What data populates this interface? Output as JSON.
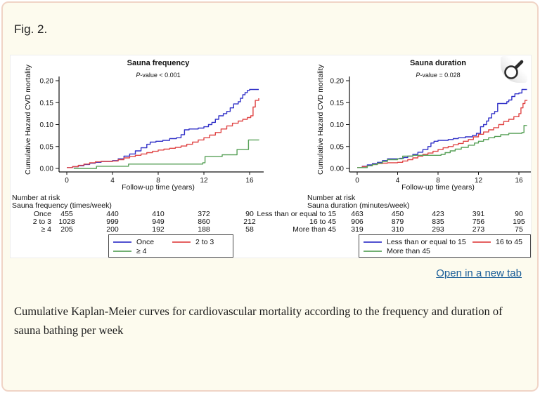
{
  "page": {
    "figure_label": "Fig. 2.",
    "open_link": "Open in a new tab",
    "caption": "Cumulative Kaplan-Meier curves for cardiovascular mortality according to the frequency and duration of sauna bathing per week"
  },
  "colors": {
    "blue": "#3232c8",
    "red": "#e04646",
    "green": "#58a158",
    "page_bg": "#fdfbee",
    "page_border": "#f0d4c6",
    "link": "#1a5d97",
    "axis": "#111111"
  },
  "icons": {
    "magnifier": "magnifying-glass"
  },
  "chart_data": [
    {
      "type": "line",
      "title": "Sauna frequency",
      "subtitle": "P-value < 0.001",
      "xlabel": "Follow-up time (years)",
      "ylabel": "Cumulative Hazard CVD mortality",
      "xlim": [
        0,
        17.2
      ],
      "ylim": [
        0,
        0.2
      ],
      "xticks": [
        0,
        4,
        8,
        12,
        16
      ],
      "yticks": [
        "0.00",
        "0.05",
        "0.10",
        "0.15",
        "0.20"
      ],
      "grid": false,
      "legend_position": "bottom",
      "series": [
        {
          "name": "Once",
          "color_key": "blue",
          "points": [
            [
              0,
              0.002
            ],
            [
              0.5,
              0.004
            ],
            [
              1,
              0.006
            ],
            [
              1.5,
              0.009
            ],
            [
              2,
              0.012
            ],
            [
              2.5,
              0.014
            ],
            [
              3,
              0.016
            ],
            [
              4,
              0.018
            ],
            [
              4.5,
              0.022
            ],
            [
              5,
              0.028
            ],
            [
              5.5,
              0.033
            ],
            [
              6,
              0.04
            ],
            [
              6.5,
              0.047
            ],
            [
              7,
              0.055
            ],
            [
              7.3,
              0.06
            ],
            [
              7.8,
              0.062
            ],
            [
              8.4,
              0.064
            ],
            [
              9,
              0.068
            ],
            [
              9.6,
              0.07
            ],
            [
              10,
              0.077
            ],
            [
              10.3,
              0.088
            ],
            [
              10.7,
              0.09
            ],
            [
              11.5,
              0.092
            ],
            [
              12,
              0.095
            ],
            [
              12.4,
              0.1
            ],
            [
              12.7,
              0.105
            ],
            [
              13,
              0.112
            ],
            [
              13.3,
              0.12
            ],
            [
              13.7,
              0.125
            ],
            [
              14,
              0.13
            ],
            [
              14.3,
              0.138
            ],
            [
              14.6,
              0.147
            ],
            [
              15,
              0.152
            ],
            [
              15.2,
              0.16
            ],
            [
              15.4,
              0.168
            ],
            [
              15.6,
              0.173
            ],
            [
              15.8,
              0.178
            ],
            [
              16,
              0.18
            ],
            [
              16.8,
              0.18
            ]
          ]
        },
        {
          "name": "2 to 3",
          "color_key": "red",
          "points": [
            [
              0,
              0.002
            ],
            [
              0.5,
              0.004
            ],
            [
              1,
              0.007
            ],
            [
              1.5,
              0.01
            ],
            [
              2,
              0.013
            ],
            [
              2.5,
              0.015
            ],
            [
              3,
              0.016
            ],
            [
              4,
              0.017
            ],
            [
              4.5,
              0.02
            ],
            [
              5,
              0.024
            ],
            [
              5.5,
              0.027
            ],
            [
              6,
              0.03
            ],
            [
              6.5,
              0.033
            ],
            [
              7,
              0.036
            ],
            [
              7.5,
              0.039
            ],
            [
              8,
              0.042
            ],
            [
              8.5,
              0.044
            ],
            [
              9,
              0.046
            ],
            [
              9.5,
              0.048
            ],
            [
              10,
              0.051
            ],
            [
              10.5,
              0.055
            ],
            [
              11,
              0.06
            ],
            [
              11.5,
              0.065
            ],
            [
              12,
              0.07
            ],
            [
              12.5,
              0.076
            ],
            [
              13,
              0.082
            ],
            [
              13.5,
              0.09
            ],
            [
              14,
              0.097
            ],
            [
              14.5,
              0.103
            ],
            [
              15,
              0.108
            ],
            [
              15.4,
              0.112
            ],
            [
              15.8,
              0.116
            ],
            [
              16.1,
              0.12
            ],
            [
              16.3,
              0.14
            ],
            [
              16.5,
              0.155
            ],
            [
              16.8,
              0.16
            ]
          ]
        },
        {
          "name": "≥ 4",
          "color_key": "green",
          "points": [
            [
              0.6,
              0
            ],
            [
              2.6,
              0.005
            ],
            [
              5.4,
              0.01
            ],
            [
              11.9,
              0.013
            ],
            [
              12.1,
              0.027
            ],
            [
              13.6,
              0.031
            ],
            [
              14.9,
              0.043
            ],
            [
              15.9,
              0.065
            ],
            [
              16.8,
              0.066
            ]
          ]
        }
      ],
      "risk_table": {
        "header": "Number at risk",
        "subheader": "Sauna frequency (times/week)",
        "rows": [
          {
            "label": "Once",
            "values": [
              455,
              440,
              410,
              372,
              90
            ]
          },
          {
            "label": "2 to 3",
            "values": [
              1028,
              999,
              949,
              860,
              212
            ]
          },
          {
            "label": "≥ 4",
            "values": [
              205,
              200,
              192,
              188,
              58
            ]
          }
        ]
      },
      "legend": [
        {
          "label": "Once",
          "color_key": "blue"
        },
        {
          "label": "2 to 3",
          "color_key": "red"
        },
        {
          "label": "≥ 4",
          "color_key": "green"
        }
      ]
    },
    {
      "type": "line",
      "title": "Sauna duration",
      "subtitle": "P-value = 0.028",
      "xlabel": "Follow-up time (years)",
      "ylabel": "Cumulative Hazard CVD mortality",
      "xlim": [
        0,
        17.2
      ],
      "ylim": [
        0,
        0.2
      ],
      "xticks": [
        0,
        4,
        8,
        12,
        16
      ],
      "yticks": [
        "0.00",
        "0.05",
        "0.10",
        "0.15",
        "0.20"
      ],
      "grid": false,
      "legend_position": "bottom",
      "series": [
        {
          "name": "Less than or equal to 15",
          "color_key": "blue",
          "points": [
            [
              0,
              0.002
            ],
            [
              0.5,
              0.005
            ],
            [
              1,
              0.008
            ],
            [
              1.5,
              0.011
            ],
            [
              2,
              0.014
            ],
            [
              2.5,
              0.018
            ],
            [
              3,
              0.022
            ],
            [
              4.2,
              0.023
            ],
            [
              4.6,
              0.025
            ],
            [
              5,
              0.028
            ],
            [
              5.5,
              0.032
            ],
            [
              6,
              0.037
            ],
            [
              6.5,
              0.043
            ],
            [
              7,
              0.05
            ],
            [
              7.3,
              0.058
            ],
            [
              7.6,
              0.062
            ],
            [
              8,
              0.064
            ],
            [
              9,
              0.066
            ],
            [
              9.5,
              0.068
            ],
            [
              10,
              0.07
            ],
            [
              10.7,
              0.072
            ],
            [
              11.4,
              0.075
            ],
            [
              11.8,
              0.08
            ],
            [
              12.2,
              0.095
            ],
            [
              12.5,
              0.1
            ],
            [
              12.8,
              0.108
            ],
            [
              13,
              0.115
            ],
            [
              13.3,
              0.125
            ],
            [
              13.6,
              0.13
            ],
            [
              13.9,
              0.148
            ],
            [
              14.8,
              0.152
            ],
            [
              15,
              0.156
            ],
            [
              15.3,
              0.164
            ],
            [
              15.6,
              0.17
            ],
            [
              16,
              0.172
            ],
            [
              16.3,
              0.18
            ],
            [
              16.8,
              0.18
            ]
          ]
        },
        {
          "name": "16 to 45",
          "color_key": "red",
          "points": [
            [
              0,
              0.002
            ],
            [
              0.5,
              0.004
            ],
            [
              1,
              0.006
            ],
            [
              1.5,
              0.009
            ],
            [
              2,
              0.011
            ],
            [
              2.5,
              0.012
            ],
            [
              3,
              0.013
            ],
            [
              4,
              0.014
            ],
            [
              4.5,
              0.017
            ],
            [
              5,
              0.02
            ],
            [
              5.5,
              0.024
            ],
            [
              6,
              0.028
            ],
            [
              6.5,
              0.032
            ],
            [
              7,
              0.035
            ],
            [
              7.5,
              0.039
            ],
            [
              8,
              0.043
            ],
            [
              8.5,
              0.047
            ],
            [
              9,
              0.05
            ],
            [
              9.5,
              0.054
            ],
            [
              10,
              0.057
            ],
            [
              10.5,
              0.062
            ],
            [
              11,
              0.066
            ],
            [
              11.5,
              0.072
            ],
            [
              12,
              0.078
            ],
            [
              12.5,
              0.083
            ],
            [
              13,
              0.088
            ],
            [
              13.5,
              0.093
            ],
            [
              14,
              0.1
            ],
            [
              14.5,
              0.107
            ],
            [
              15,
              0.112
            ],
            [
              15.5,
              0.118
            ],
            [
              16,
              0.125
            ],
            [
              16.2,
              0.138
            ],
            [
              16.4,
              0.148
            ],
            [
              16.6,
              0.155
            ],
            [
              16.8,
              0.156
            ]
          ]
        },
        {
          "name": "More than 45",
          "color_key": "green",
          "points": [
            [
              0,
              0.002
            ],
            [
              1,
              0.006
            ],
            [
              1.5,
              0.009
            ],
            [
              2,
              0.012
            ],
            [
              2.5,
              0.016
            ],
            [
              3,
              0.02
            ],
            [
              4,
              0.022
            ],
            [
              4.5,
              0.028
            ],
            [
              5.5,
              0.03
            ],
            [
              8.3,
              0.032
            ],
            [
              8.7,
              0.036
            ],
            [
              9.2,
              0.04
            ],
            [
              9.7,
              0.044
            ],
            [
              10.3,
              0.048
            ],
            [
              11,
              0.053
            ],
            [
              11.6,
              0.058
            ],
            [
              12,
              0.062
            ],
            [
              12.5,
              0.066
            ],
            [
              13,
              0.07
            ],
            [
              13.6,
              0.073
            ],
            [
              14.2,
              0.077
            ],
            [
              15,
              0.08
            ],
            [
              16.3,
              0.082
            ],
            [
              16.5,
              0.098
            ],
            [
              16.8,
              0.098
            ]
          ]
        }
      ],
      "risk_table": {
        "header": "Number at risk",
        "subheader": "Sauna duration (minutes/week)",
        "rows": [
          {
            "label": "Less than or equal to 15",
            "values": [
              463,
              450,
              423,
              391,
              90
            ]
          },
          {
            "label": "16 to 45",
            "values": [
              906,
              879,
              835,
              756,
              195
            ]
          },
          {
            "label": "More than 45",
            "values": [
              319,
              310,
              293,
              273,
              75
            ]
          }
        ]
      },
      "legend": [
        {
          "label": "Less than or equal to 15",
          "color_key": "blue"
        },
        {
          "label": "16 to 45",
          "color_key": "red"
        },
        {
          "label": "More than 45",
          "color_key": "green"
        }
      ]
    }
  ]
}
